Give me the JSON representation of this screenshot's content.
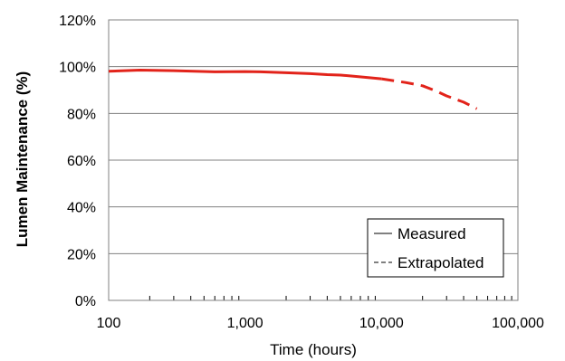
{
  "chart_data": {
    "type": "line",
    "xlabel": "Time (hours)",
    "ylabel": "Lumen Maintenance (%)",
    "x_scale": "log",
    "xlim": [
      100,
      100000
    ],
    "ylim": [
      0,
      120
    ],
    "x_ticks": [
      "100",
      "1,000",
      "10,000",
      "100,000"
    ],
    "y_ticks": [
      "0%",
      "20%",
      "40%",
      "60%",
      "80%",
      "100%",
      "120%"
    ],
    "grid": "horizontal",
    "legend_position": "bottom-right",
    "series_color": "#e2231a",
    "series": [
      {
        "name": "Measured",
        "style": "solid",
        "x": [
          100,
          170,
          300,
          600,
          1000,
          1300,
          2000,
          3000,
          4000,
          5000,
          6000,
          8000,
          10000
        ],
        "y": [
          98.0,
          98.5,
          98.3,
          97.8,
          97.9,
          97.8,
          97.4,
          97.0,
          96.6,
          96.4,
          96.0,
          95.3,
          94.8
        ]
      },
      {
        "name": "Extrapolated",
        "style": "dashed",
        "x": [
          10000,
          15000,
          20000,
          25000,
          30000,
          40000,
          50000
        ],
        "y": [
          94.8,
          93.2,
          91.8,
          89.6,
          87.5,
          84.8,
          82.0
        ]
      }
    ]
  }
}
